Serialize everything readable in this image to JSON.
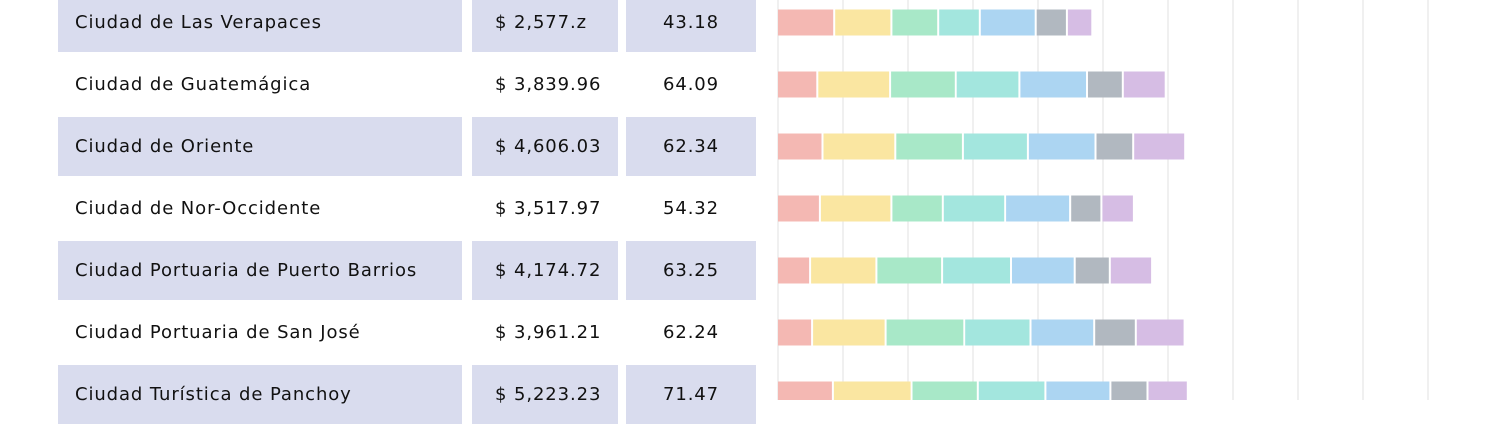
{
  "chart_data": {
    "type": "table",
    "columns": [
      "city",
      "amount",
      "value",
      "segments"
    ],
    "colors": [
      "#f4b8b3",
      "#fae6a1",
      "#a8e8c8",
      "#a3e6de",
      "#acd5f2",
      "#b1b8c0",
      "#d6bde4"
    ],
    "xlim": [
      0,
      1000
    ],
    "grid": true,
    "rows": [
      {
        "city": "Ciudad de Las Verapaces",
        "amount": "$ 2,577.z",
        "value": "43.18",
        "segments": [
          88,
          88,
          72,
          64,
          86,
          48,
          39
        ]
      },
      {
        "city": "Ciudad de Guatemágica",
        "amount": "$ 3,839.96",
        "value": "64.09",
        "segments": [
          62,
          112,
          101,
          98,
          104,
          55,
          66
        ]
      },
      {
        "city": "Ciudad de Oriente",
        "amount": "$ 4,606.03",
        "value": "62.34",
        "segments": [
          70,
          112,
          104,
          100,
          104,
          58,
          80
        ]
      },
      {
        "city": "Ciudad de Nor-Occidente",
        "amount": "$ 3,517.97",
        "value": "54.32",
        "segments": [
          66,
          110,
          79,
          96,
          100,
          48,
          50
        ]
      },
      {
        "city": "Ciudad Portuaria de Puerto Barrios",
        "amount": "$ 4,174.72",
        "value": "63.25",
        "segments": [
          51,
          102,
          101,
          106,
          98,
          54,
          65
        ]
      },
      {
        "city": "Ciudad Portuaria de San José",
        "amount": "$ 3,961.21",
        "value": "62.24",
        "segments": [
          54,
          113,
          121,
          102,
          98,
          64,
          75
        ]
      },
      {
        "city": "Ciudad Turística de Panchoy",
        "amount": "$ 5,223.23",
        "value": "71.47",
        "segments": [
          86,
          121,
          102,
          104,
          100,
          57,
          62
        ]
      }
    ]
  }
}
